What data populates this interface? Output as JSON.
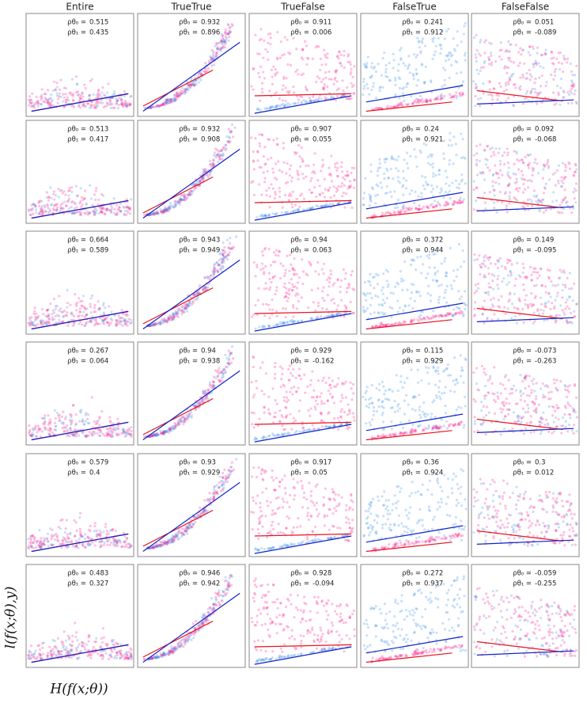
{
  "columns": [
    "Entire",
    "TrueTrue",
    "TrueFalse",
    "FalseTrue",
    "FalseFalse"
  ],
  "symbols": [
    "ρθ₀ =",
    "ρθ₁ ="
  ],
  "rows": [
    [
      [
        0.515,
        0.435
      ],
      [
        0.932,
        0.896
      ],
      [
        0.911,
        0.006
      ],
      [
        0.241,
        0.912
      ],
      [
        0.051,
        -0.089
      ]
    ],
    [
      [
        0.513,
        0.417
      ],
      [
        0.932,
        0.908
      ],
      [
        0.907,
        0.055
      ],
      [
        0.24,
        0.921
      ],
      [
        0.092,
        -0.068
      ]
    ],
    [
      [
        0.664,
        0.589
      ],
      [
        0.943,
        0.949
      ],
      [
        0.94,
        0.063
      ],
      [
        0.372,
        0.944
      ],
      [
        0.149,
        -0.095
      ]
    ],
    [
      [
        0.267,
        0.064
      ],
      [
        0.94,
        0.938
      ],
      [
        0.929,
        -0.162
      ],
      [
        0.115,
        0.929
      ],
      [
        -0.073,
        -0.263
      ]
    ],
    [
      [
        0.579,
        0.4
      ],
      [
        0.93,
        0.929
      ],
      [
        0.917,
        0.05
      ],
      [
        0.36,
        0.924
      ],
      [
        0.3,
        0.012
      ]
    ],
    [
      [
        0.483,
        0.327
      ],
      [
        0.946,
        0.942
      ],
      [
        0.928,
        -0.094
      ],
      [
        0.272,
        0.937
      ],
      [
        -0.059,
        -0.255
      ]
    ]
  ],
  "y_label": "l(f(x;θ),y)",
  "x_label": "H(f(x;θ))"
}
